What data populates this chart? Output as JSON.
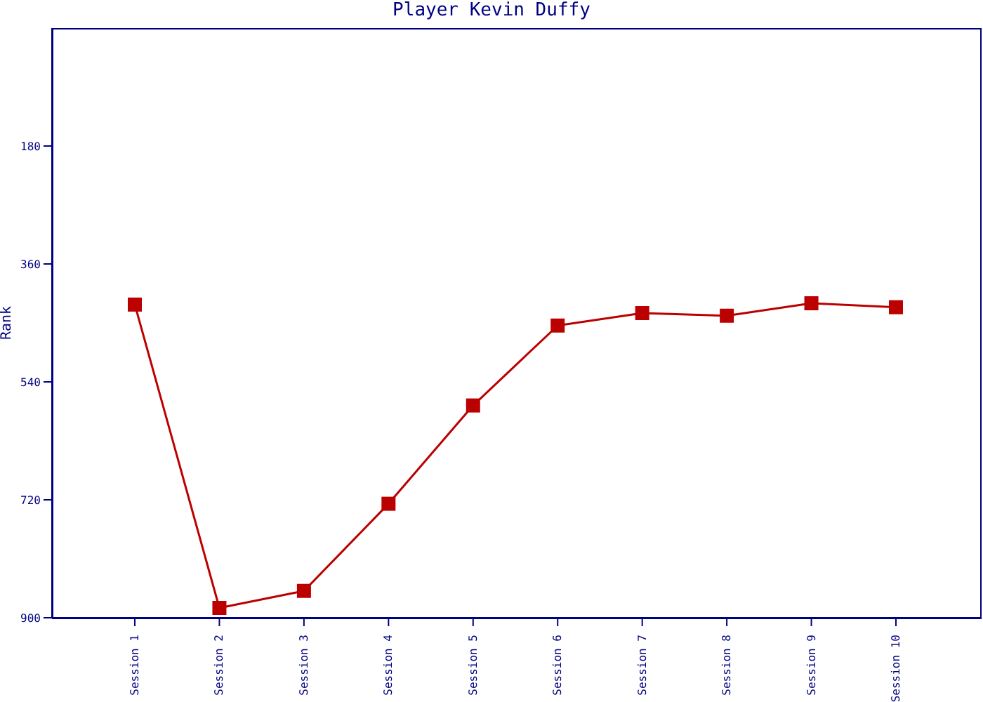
{
  "chart_data": {
    "type": "line",
    "title": "Player Kevin Duffy",
    "ylabel": "Rank",
    "categories": [
      "Session 1",
      "Session 2",
      "Session 3",
      "Session 4",
      "Session 5",
      "Session 6",
      "Session 7",
      "Session 8",
      "Session 9",
      "Session 10"
    ],
    "series": [
      {
        "color": "#bb0000",
        "values": [
          422,
          885,
          859,
          726,
          576,
          454,
          435,
          439,
          420,
          426
        ]
      }
    ],
    "ylim": [
      900,
      0
    ],
    "yticks": [
      180,
      360,
      540,
      720,
      900
    ],
    "grid": false,
    "legend": false,
    "marker": "square",
    "line_style": "solid"
  }
}
